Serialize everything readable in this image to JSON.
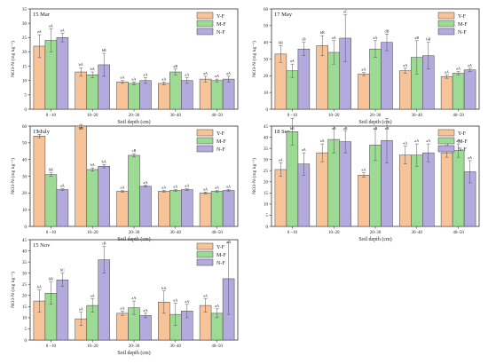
{
  "legend": [
    "Y-F",
    "M-F",
    "N-F"
  ],
  "colors": {
    "Y-F": "#f7c49a",
    "M-F": "#9ddb94",
    "N-F": "#b5aade"
  },
  "chart_data": [
    {
      "type": "bar",
      "panel_label": "15 Mar",
      "ylabel": "NO3-N (mg kg⁻¹)",
      "xlabel": "Soil depth (cm)",
      "categories": [
        "0 –10",
        "10–20",
        "20–30",
        "30–40",
        "40–50"
      ],
      "ylim": [
        0,
        35
      ],
      "yticks": [
        0,
        5,
        10,
        15,
        20,
        25,
        30,
        35
      ],
      "series": [
        {
          "name": "Y-F",
          "values": [
            22,
            13,
            9.5,
            9,
            10.5
          ],
          "errors": [
            4,
            1.5,
            0.5,
            0.5,
            1
          ],
          "labels": [
            "aA",
            "bA",
            "aA",
            "aA",
            "aA"
          ]
        },
        {
          "name": "M-F",
          "values": [
            24,
            12,
            9,
            13,
            10
          ],
          "errors": [
            4,
            1,
            0.5,
            1,
            0.5
          ],
          "labels": [
            "aA",
            "bA",
            "aA",
            "aB",
            "aA"
          ]
        },
        {
          "name": "N-F",
          "values": [
            25,
            15.5,
            10,
            10,
            10.5
          ],
          "errors": [
            1.5,
            4,
            1,
            1,
            1
          ],
          "labels": [
            "aA",
            "bB",
            "aA",
            "aA",
            "aA"
          ]
        }
      ]
    },
    {
      "type": "bar",
      "panel_label": "17 May",
      "ylabel": "NO3-N (mg kg⁻¹)",
      "xlabel": "Soil depth (cm)",
      "categories": [
        "0 –10",
        "10–20",
        "20–30",
        "30–40",
        "40–50"
      ],
      "ylim": [
        0,
        60
      ],
      "yticks": [
        0,
        10,
        20,
        30,
        40,
        50,
        60
      ],
      "series": [
        {
          "name": "Y-F",
          "values": [
            33,
            38,
            21,
            23,
            19.5
          ],
          "errors": [
            5,
            6,
            1,
            1.5,
            1
          ],
          "labels": [
            "bB",
            "bB",
            "aA",
            "aA",
            "aA"
          ]
        },
        {
          "name": "M-F",
          "values": [
            23,
            34,
            36,
            31,
            21.5
          ],
          "errors": [
            4,
            7,
            5,
            10,
            1
          ],
          "labels": [
            "aA",
            "aA",
            "aA",
            "aB",
            "aA"
          ]
        },
        {
          "name": "N-F",
          "values": [
            36,
            42.5,
            40,
            32,
            23.5
          ],
          "errors": [
            4,
            14,
            5,
            8,
            1
          ],
          "labels": [
            "cB",
            "aC",
            "dB",
            "bB",
            "aA"
          ]
        }
      ]
    },
    {
      "type": "bar",
      "panel_label": "15 July",
      "ylabel": "NO3-N (mg kg⁻¹)",
      "xlabel": "Soil depth (cm)",
      "categories": [
        "0 –10",
        "10–20",
        "20–30",
        "30–40",
        "40–50"
      ],
      "ylim": [
        0,
        60
      ],
      "yticks": [
        0,
        10,
        20,
        30,
        40,
        50,
        60
      ],
      "series": [
        {
          "name": "Y-F",
          "values": [
            54,
            60,
            21,
            21,
            20
          ],
          "errors": [
            1,
            1,
            0.5,
            0.5,
            0.5
          ],
          "labels": [
            "bC",
            "bB",
            "aA",
            "aA",
            "aA"
          ]
        },
        {
          "name": "M-F",
          "values": [
            31,
            34,
            42.5,
            21.5,
            21
          ],
          "errors": [
            1,
            1,
            1,
            0.5,
            0.5
          ],
          "labels": [
            "bB",
            "bA",
            "cB",
            "aA",
            "aA"
          ]
        },
        {
          "name": "N-F",
          "values": [
            22,
            36,
            24,
            22,
            21.5
          ],
          "errors": [
            0.5,
            1,
            0.5,
            0.5,
            0.5
          ],
          "labels": [
            "aA",
            "bA",
            "aA",
            "aA",
            "aA"
          ]
        }
      ]
    },
    {
      "type": "bar",
      "panel_label": "18 Sep",
      "ylabel": "NO3-N (mg kg⁻¹)",
      "xlabel": "Soil depth (cm)",
      "categories": [
        "0 –10",
        "10–20",
        "20–30",
        "30–40",
        "40–50"
      ],
      "ylim": [
        0,
        45
      ],
      "yticks": [
        0,
        5,
        10,
        15,
        20,
        25,
        30,
        35,
        40,
        45
      ],
      "series": [
        {
          "name": "Y-F",
          "values": [
            25.5,
            33,
            23,
            32,
            33
          ],
          "errors": [
            3,
            4,
            1,
            4,
            2
          ],
          "labels": [
            "aA",
            "aA",
            "aA",
            "aA",
            "aA"
          ]
        },
        {
          "name": "M-F",
          "values": [
            42.5,
            39,
            36.5,
            32,
            34
          ],
          "errors": [
            6,
            6,
            7,
            5,
            3
          ],
          "labels": [
            "bB",
            "aB",
            "aB",
            "aA",
            "aB"
          ]
        },
        {
          "name": "N-F",
          "values": [
            28,
            38,
            38.5,
            33,
            24.5
          ],
          "errors": [
            5,
            5,
            10,
            4,
            5
          ],
          "labels": [
            "aA",
            "aB",
            "aB",
            "aA",
            "aA"
          ]
        }
      ]
    },
    {
      "type": "bar",
      "panel_label": "15 Nov",
      "ylabel": "NO3-N (mg kg⁻¹)",
      "xlabel": "Soil depth (cm)",
      "categories": [
        "0 –10",
        "10–20",
        "20–30",
        "30–40",
        "40–50"
      ],
      "ylim": [
        0,
        45
      ],
      "yticks": [
        0,
        5,
        10,
        15,
        20,
        25,
        30,
        35,
        40,
        45
      ],
      "series": [
        {
          "name": "Y-F",
          "values": [
            17.5,
            9.5,
            12,
            17,
            15.5
          ],
          "errors": [
            5,
            3,
            1,
            5,
            3
          ],
          "labels": [
            "bA",
            "aA",
            "aA",
            "bA",
            "aA"
          ]
        },
        {
          "name": "M-F",
          "values": [
            21,
            15.5,
            14.5,
            11.5,
            12
          ],
          "errors": [
            5,
            3,
            3,
            5,
            2
          ],
          "labels": [
            "bB",
            "aA",
            "aA",
            "aA",
            "aA"
          ]
        },
        {
          "name": "N-F",
          "values": [
            27,
            36,
            11,
            13,
            27.5
          ],
          "errors": [
            3,
            6,
            1,
            3,
            16
          ],
          "labels": [
            "bC",
            "cB",
            "aA",
            "aA",
            "aB"
          ]
        }
      ]
    }
  ]
}
